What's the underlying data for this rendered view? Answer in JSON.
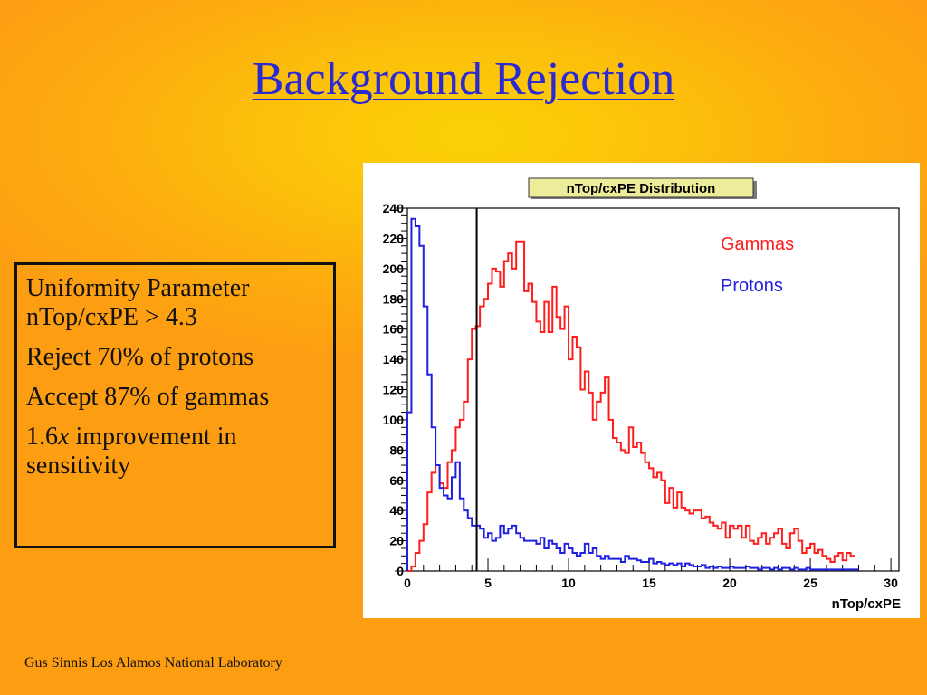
{
  "slide": {
    "title": "Background Rejection",
    "footer": "Gus Sinnis Los Alamos National Laboratory"
  },
  "text_box": {
    "line1": "Uniformity Parameter",
    "line2": "nTop/cxPE > 4.3",
    "line3": "Reject 70% of protons",
    "line4": "Accept 87% of gammas",
    "line5_num": "1.6",
    "line5_x": "x",
    "line5_rest": " improvement in",
    "line6": "sensitivity"
  },
  "chart_data": {
    "type": "line",
    "title": "nTop/cxPE Distribution",
    "xlabel": "nTop/cxPE",
    "ylabel": "",
    "xlim": [
      0,
      30.5
    ],
    "ylim": [
      0,
      240
    ],
    "x_ticks": [
      0,
      5,
      10,
      15,
      20,
      25,
      30
    ],
    "y_ticks": [
      0,
      20,
      40,
      60,
      80,
      100,
      120,
      140,
      160,
      180,
      200,
      220,
      240
    ],
    "bin_width": 0.25,
    "cut_line_x": 4.3,
    "grid": false,
    "legend": "top-right",
    "colors": {
      "gammas": "#ff1e1e",
      "protons": "#2020e0",
      "cut": "#000000"
    },
    "series": [
      {
        "name": "Gammas",
        "values": [
          0,
          3,
          12,
          20,
          31,
          52,
          65,
          70,
          58,
          55,
          72,
          80,
          95,
          100,
          112,
          140,
          160,
          162,
          175,
          180,
          190,
          200,
          198,
          188,
          205,
          210,
          200,
          218,
          218,
          185,
          190,
          178,
          165,
          158,
          178,
          158,
          188,
          168,
          160,
          175,
          140,
          155,
          148,
          120,
          132,
          118,
          100,
          112,
          118,
          128,
          100,
          88,
          85,
          80,
          78,
          95,
          82,
          85,
          78,
          72,
          68,
          62,
          65,
          60,
          45,
          55,
          42,
          52,
          42,
          40,
          38,
          40,
          40,
          35,
          36,
          32,
          30,
          28,
          32,
          22,
          30,
          28,
          30,
          22,
          30,
          20,
          18,
          22,
          25,
          18,
          22,
          25,
          28,
          18,
          15,
          25,
          28,
          20,
          12,
          15,
          18,
          12,
          14,
          10,
          8,
          6,
          10,
          12,
          7,
          12,
          10
        ]
      },
      {
        "name": "Protons",
        "values": [
          105,
          233,
          228,
          215,
          175,
          130,
          95,
          70,
          55,
          50,
          48,
          62,
          72,
          48,
          40,
          35,
          30,
          30,
          28,
          22,
          25,
          20,
          22,
          30,
          25,
          28,
          30,
          25,
          22,
          20,
          20,
          20,
          18,
          22,
          15,
          20,
          18,
          15,
          12,
          18,
          15,
          12,
          10,
          12,
          18,
          12,
          15,
          10,
          8,
          10,
          8,
          8,
          8,
          6,
          10,
          8,
          8,
          7,
          6,
          6,
          8,
          5,
          6,
          5,
          4,
          5,
          4,
          5,
          3,
          5,
          4,
          3,
          3,
          4,
          2,
          3,
          2,
          3,
          2,
          2,
          3,
          2,
          2,
          2,
          3,
          2,
          2,
          1,
          2,
          2,
          1,
          2,
          1,
          2,
          2,
          1,
          2,
          1,
          1,
          2,
          1,
          1,
          1,
          1,
          1,
          1,
          1,
          1,
          1,
          1,
          1,
          1
        ]
      }
    ]
  }
}
